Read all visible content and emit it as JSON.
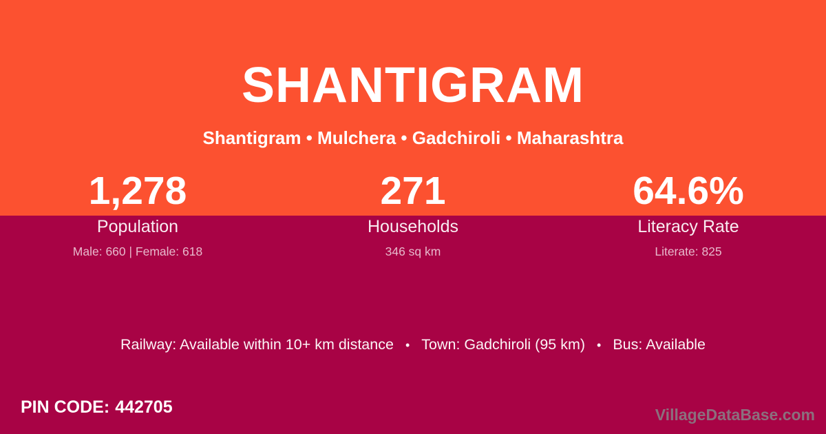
{
  "colors": {
    "orange": "#FC5130",
    "maroon": "#A80345"
  },
  "header": {
    "title": "SHANTIGRAM",
    "breadcrumb": "Shantigram • Mulchera • Gadchiroli • Maharashtra"
  },
  "stats": [
    {
      "value": "1,278",
      "label": "Population",
      "detail": "Male: 660 | Female: 618"
    },
    {
      "value": "271",
      "label": "Households",
      "detail": "346 sq km"
    },
    {
      "value": "64.6%",
      "label": "Literacy Rate",
      "detail": "Literate: 825"
    }
  ],
  "info": {
    "railway": "Railway: Available within 10+ km distance",
    "town": "Town: Gadchiroli (95 km)",
    "bus": "Bus: Available",
    "separator": "•"
  },
  "footer": {
    "pin_label": "PIN CODE:",
    "pin_value": "442705",
    "watermark": "VillageDataBase.com"
  }
}
